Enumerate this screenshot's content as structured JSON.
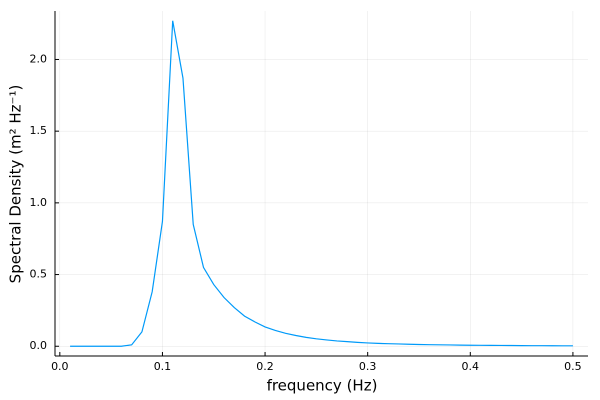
{
  "chart_data": {
    "type": "line",
    "x_label": "frequency (Hz)",
    "y_label": "Spectral Density (m² Hz⁻¹)",
    "x": [
      0.01,
      0.02,
      0.03,
      0.04,
      0.05,
      0.06,
      0.07,
      0.08,
      0.09,
      0.1,
      0.11,
      0.12,
      0.13,
      0.14,
      0.15,
      0.16,
      0.17,
      0.18,
      0.19,
      0.2,
      0.21,
      0.22,
      0.23,
      0.24,
      0.25,
      0.26,
      0.27,
      0.28,
      0.29,
      0.3,
      0.31,
      0.32,
      0.33,
      0.34,
      0.35,
      0.36,
      0.37,
      0.38,
      0.39,
      0.4,
      0.41,
      0.42,
      0.43,
      0.44,
      0.45,
      0.46,
      0.47,
      0.48,
      0.49,
      0.5
    ],
    "series": [
      {
        "color": "#009af9",
        "values": [
          0,
          0,
          0,
          0,
          0,
          0,
          0.01,
          0.1,
          0.38,
          0.87,
          2.27,
          1.87,
          0.85,
          0.55,
          0.43,
          0.34,
          0.27,
          0.21,
          0.17,
          0.135,
          0.11,
          0.09,
          0.075,
          0.062,
          0.052,
          0.044,
          0.037,
          0.032,
          0.027,
          0.023,
          0.02,
          0.018,
          0.016,
          0.014,
          0.012,
          0.011,
          0.01,
          0.009,
          0.008,
          0.007,
          0.0065,
          0.006,
          0.0055,
          0.005,
          0.0045,
          0.004,
          0.004,
          0.0035,
          0.003,
          0.003
        ]
      }
    ],
    "xlim": [
      -0.0047,
      0.5147
    ],
    "ylim": [
      -0.068,
      2.338
    ],
    "xticks": [
      {
        "value": 0,
        "label": "0.0"
      },
      0.1,
      0.2,
      0.3,
      0.4,
      0.5
    ],
    "yticks": [
      {
        "value": 0,
        "label": "0.0"
      },
      0.5,
      {
        "value": 1,
        "label": "1.0"
      },
      1.5,
      {
        "value": 2,
        "label": "2.0"
      }
    ],
    "grid": true
  }
}
